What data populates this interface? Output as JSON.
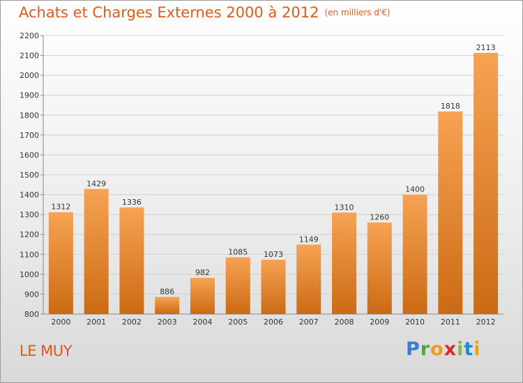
{
  "header": {
    "title": "Achats et Charges Externes 2000 à 2012",
    "unit": "(en milliers d'€)"
  },
  "footer": {
    "place": "LE MUY",
    "logo": "Proxiti"
  },
  "colors": {
    "bar_top": "#f6a353",
    "bar_bottom": "#cc6a14",
    "title": "#e05a1a",
    "place": "#e0531a"
  },
  "chart_data": {
    "type": "bar",
    "title": "Achats et Charges Externes 2000 à 2012",
    "subtitle": "(en milliers d'€)",
    "xlabel": "",
    "ylabel": "",
    "categories": [
      "2000",
      "2001",
      "2002",
      "2003",
      "2004",
      "2005",
      "2006",
      "2007",
      "2008",
      "2009",
      "2010",
      "2011",
      "2012"
    ],
    "values": [
      1312,
      1429,
      1336,
      886,
      982,
      1085,
      1073,
      1149,
      1310,
      1260,
      1400,
      1818,
      2113
    ],
    "ylim": [
      800,
      2200
    ],
    "yticks": [
      800,
      900,
      1000,
      1100,
      1200,
      1300,
      1400,
      1500,
      1600,
      1700,
      1800,
      1900,
      2000,
      2100,
      2200
    ],
    "grid": true,
    "legend": "none"
  }
}
